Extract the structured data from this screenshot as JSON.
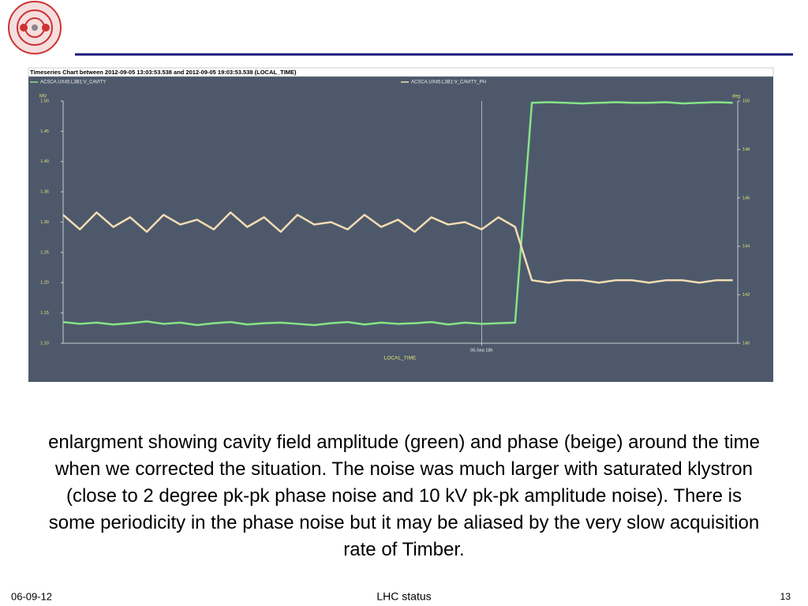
{
  "chart_data": {
    "type": "line",
    "title": "Timeseries Chart between 2012-09-05 13:03:53.538 and 2012-09-05 19:03:53.538 (LOCAL_TIME)",
    "x_label": "LOCAL_TIME",
    "y_label": "MV",
    "y2_label": "deg",
    "x": [
      15.5,
      15.6,
      15.7,
      15.8,
      15.9,
      16.0,
      16.1,
      16.2,
      16.3,
      16.4,
      16.5,
      16.6,
      16.7,
      16.8,
      16.9,
      17.0,
      17.1,
      17.2,
      17.3,
      17.4,
      17.5,
      17.6,
      17.7,
      17.8,
      17.9,
      18.0,
      18.1,
      18.2,
      18.3,
      18.4,
      18.5,
      18.6,
      18.7,
      18.8,
      18.9,
      19.0,
      19.1,
      19.2,
      19.3,
      19.4,
      19.5
    ],
    "series": [
      {
        "name": "ACSCA.UX45.L3B1:V_CAVITY",
        "color": "#86e486",
        "values": [
          1.135,
          1.132,
          1.134,
          1.131,
          1.133,
          1.136,
          1.132,
          1.134,
          1.13,
          1.133,
          1.135,
          1.131,
          1.133,
          1.134,
          1.132,
          1.13,
          1.133,
          1.135,
          1.131,
          1.134,
          1.132,
          1.133,
          1.135,
          1.131,
          1.134,
          1.132,
          1.133,
          1.134,
          1.497,
          1.498,
          1.497,
          1.496,
          1.497,
          1.498,
          1.497,
          1.497,
          1.498,
          1.496,
          1.497,
          1.498,
          1.497
        ]
      },
      {
        "name": "ACSCA.UX45.L3B1:V_CAVITY_PH",
        "color": "#f4dcb4",
        "axis": "y2",
        "values": [
          145.3,
          144.7,
          145.4,
          144.8,
          145.2,
          144.6,
          145.3,
          144.9,
          145.1,
          144.7,
          145.4,
          144.8,
          145.2,
          144.6,
          145.3,
          144.9,
          145.0,
          144.7,
          145.3,
          144.8,
          145.1,
          144.6,
          145.2,
          144.9,
          145.0,
          144.7,
          145.2,
          144.8,
          142.6,
          142.5,
          142.6,
          142.6,
          142.5,
          142.6,
          142.6,
          142.5,
          142.6,
          142.6,
          142.5,
          142.6,
          142.6
        ]
      }
    ],
    "xlim": [
      15.5,
      19.53
    ],
    "xticks": [
      {
        "value": 18,
        "label": "05-Sep 18h"
      }
    ],
    "ylim": [
      1.1,
      1.5
    ],
    "yticks": [
      {
        "value": 1.1,
        "label": "1.10"
      },
      {
        "value": 1.15,
        "label": "1.15"
      },
      {
        "value": 1.2,
        "label": "1.20"
      },
      {
        "value": 1.25,
        "label": "1.25"
      },
      {
        "value": 1.3,
        "label": "1.30"
      },
      {
        "value": 1.35,
        "label": "1.35"
      },
      {
        "value": 1.4,
        "label": "1.40"
      },
      {
        "value": 1.45,
        "label": "1.45"
      },
      {
        "value": 1.5,
        "label": "1.50"
      }
    ],
    "y2lim": [
      140,
      150
    ],
    "y2ticks": [
      140,
      142,
      144,
      146,
      148,
      150
    ],
    "grid": true
  },
  "slide": {
    "caption": "enlargment showing cavity field amplitude (green) and phase (beige) around the time when we corrected the situation. The noise was much larger with saturated klystron (close to 2 degree pk-pk phase noise and 10 kV pk-pk amplitude noise). There is some periodicity in the phase noise but it may be aliased by the very slow acquisition rate of Timber.",
    "date": "06-09-12",
    "footer": "LHC status",
    "page": "13"
  }
}
